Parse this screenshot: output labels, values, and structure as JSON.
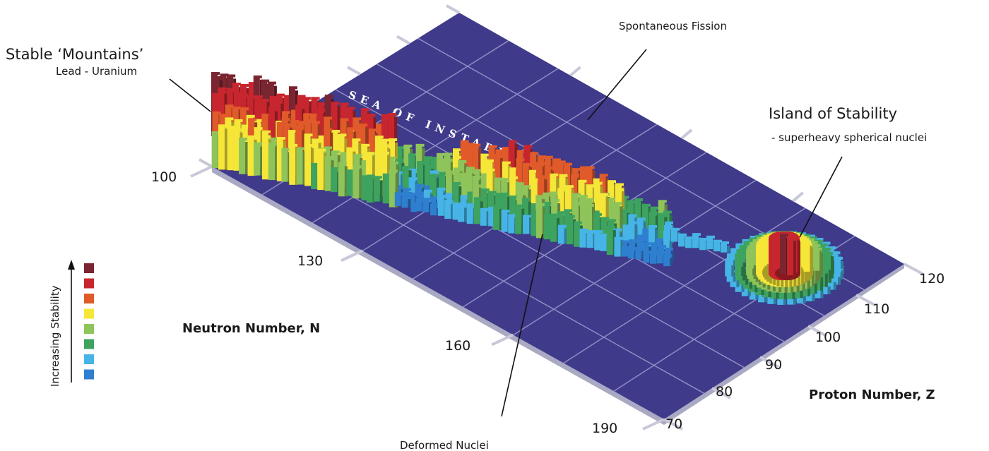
{
  "annotations": {
    "stable_mountains_title": "Stable ‘Mountains’",
    "stable_mountains_sub": "Lead - Uranium",
    "spontaneous_fission": "Spontaneous Fission",
    "island_title": "Island of Stability",
    "island_sub": "- superheavy spherical nuclei",
    "deformed_nuclei": "Deformed Nuclei",
    "sea": "SEA OF INSTABILITY"
  },
  "axes": {
    "neutron_label": "Neutron Number, N",
    "proton_label": "Proton Number, Z",
    "neutron_ticks": [
      "100",
      "130",
      "160",
      "190"
    ],
    "proton_ticks": [
      "70",
      "80",
      "90",
      "100",
      "110",
      "120"
    ]
  },
  "legend": {
    "label": "Increasing Stability",
    "colors": [
      "#7a2530",
      "#c8262e",
      "#e05a2a",
      "#f5e638",
      "#8fc45a",
      "#3da35f",
      "#46b4e6",
      "#2f7fd0"
    ]
  },
  "colors": {
    "sea": "#3f3a89",
    "grid": "#8d8dc6",
    "side": "#a9a9c4"
  }
}
